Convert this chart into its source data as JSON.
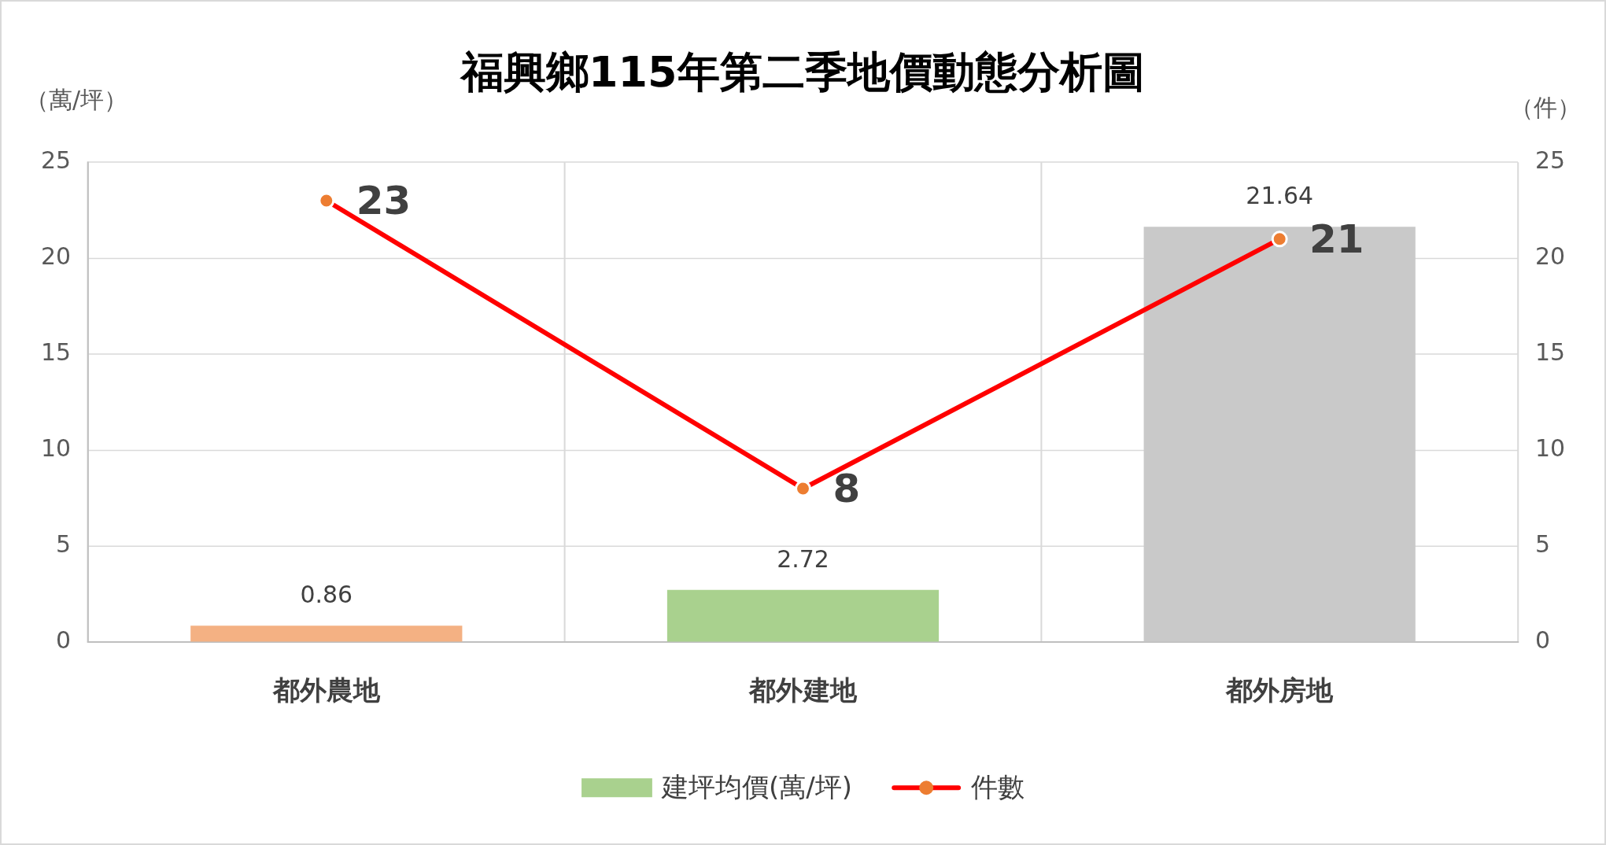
{
  "chart_data": {
    "type": "bar",
    "title": "福興鄉115年第二季地價動態分析圖",
    "ylabel": "（萬/坪）",
    "y2label": "（件）",
    "categories": [
      "都外農地",
      "都外建地",
      "都外房地"
    ],
    "series": [
      {
        "name": "建坪均價(萬/坪)",
        "color": "#a9d18e",
        "colors": [
          "#f4b183",
          "#a9d18e",
          "#c9c9c9"
        ],
        "values": [
          0.86,
          2.72,
          21.64
        ]
      },
      {
        "name": "件數",
        "type": "line",
        "axis": "y2",
        "color": "#ff0000",
        "colors": [
          "#ed7d31",
          "#ed7d31",
          "#ed7d31"
        ],
        "marker": "circle",
        "values": [
          23,
          8,
          21
        ]
      }
    ],
    "ylim": [
      0,
      25
    ],
    "yticks": [
      0,
      5,
      10,
      15,
      20,
      25
    ],
    "y2lim": [
      0,
      25
    ],
    "y2ticks": [
      0,
      5,
      10,
      15,
      20,
      25
    ],
    "grid": true,
    "legend": "bottom",
    "data_labels": true
  }
}
